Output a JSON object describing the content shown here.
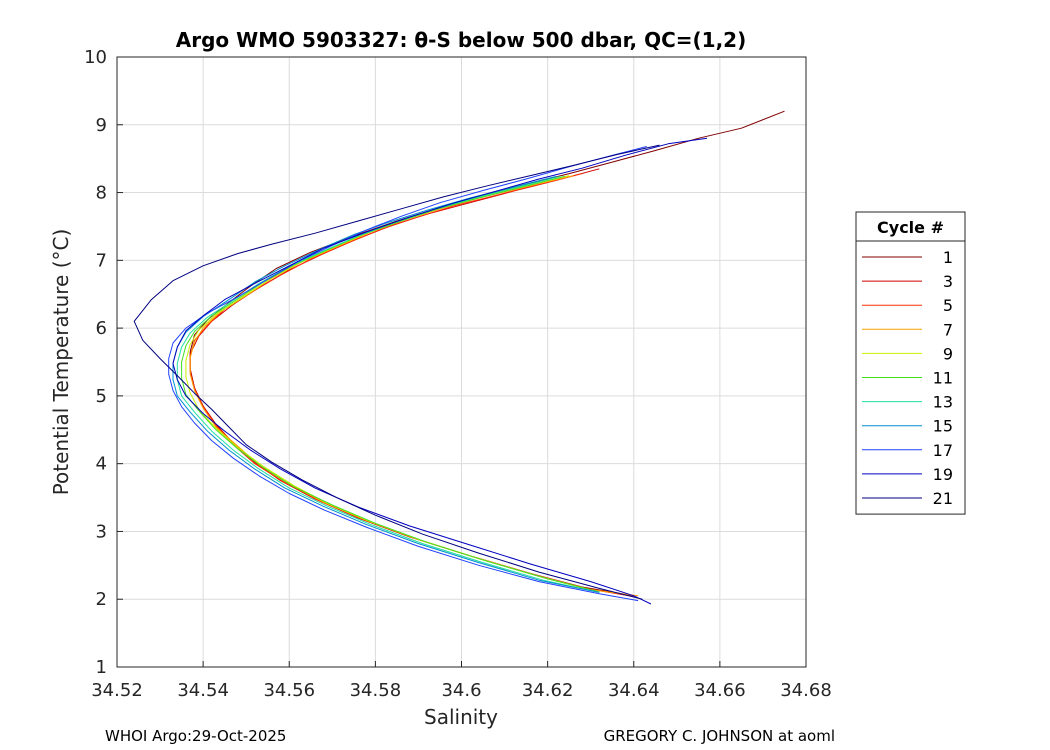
{
  "chart_data": {
    "type": "line",
    "title": "Argo WMO 5903327: θ-S below 500 dbar,  QC=(1,2)",
    "xlabel": "Salinity",
    "ylabel": "Potential Temperature (°C)",
    "xlim": [
      34.52,
      34.68
    ],
    "ylim": [
      1,
      10
    ],
    "x_ticks": [
      "34.52",
      "34.54",
      "34.56",
      "34.58",
      "34.6",
      "34.62",
      "34.64",
      "34.66",
      "34.68"
    ],
    "y_ticks": [
      "1",
      "2",
      "3",
      "4",
      "5",
      "6",
      "7",
      "8",
      "9",
      "10"
    ],
    "grid": true,
    "legend": {
      "title": "Cycle #",
      "placement": "right-outside"
    },
    "series": [
      {
        "name": "1",
        "color": "#800000",
        "x": [
          34.675,
          34.665,
          34.655,
          34.645,
          34.635,
          34.625,
          34.615,
          34.605,
          34.595,
          34.585,
          34.575,
          34.565,
          34.557,
          34.551,
          34.546,
          34.541,
          34.538,
          34.537,
          34.537,
          34.538,
          34.54,
          34.543,
          34.547,
          34.552,
          34.558,
          34.566,
          34.576,
          34.588,
          34.602,
          34.616,
          34.628,
          34.64
        ],
        "y": [
          9.2,
          8.95,
          8.8,
          8.62,
          8.45,
          8.28,
          8.12,
          7.96,
          7.78,
          7.58,
          7.36,
          7.12,
          6.88,
          6.62,
          6.38,
          6.12,
          5.9,
          5.65,
          5.4,
          5.12,
          4.85,
          4.58,
          4.3,
          4.02,
          3.75,
          3.48,
          3.2,
          2.92,
          2.64,
          2.38,
          2.18,
          2.05
        ]
      },
      {
        "name": "3",
        "color": "#d00000",
        "x": [
          34.632,
          34.622,
          34.612,
          34.602,
          34.592,
          34.584,
          34.576,
          34.568,
          34.56,
          34.553,
          34.547,
          34.542,
          34.539,
          34.537,
          34.537,
          34.538,
          34.54,
          34.543,
          34.547,
          34.552,
          34.558,
          34.566,
          34.576,
          34.588,
          34.602,
          34.616,
          34.628,
          34.639
        ],
        "y": [
          8.35,
          8.18,
          8.02,
          7.85,
          7.68,
          7.52,
          7.32,
          7.1,
          6.86,
          6.6,
          6.35,
          6.1,
          5.88,
          5.62,
          5.38,
          5.12,
          4.85,
          4.58,
          4.3,
          4.02,
          3.75,
          3.48,
          3.2,
          2.92,
          2.64,
          2.38,
          2.17,
          2.05
        ]
      },
      {
        "name": "5",
        "color": "#ff3000",
        "x": [
          34.628,
          34.618,
          34.608,
          34.598,
          34.589,
          34.581,
          34.573,
          34.565,
          34.558,
          34.551,
          34.545,
          34.541,
          34.538,
          34.537,
          34.537,
          34.538,
          34.54,
          34.543,
          34.547,
          34.552,
          34.559,
          34.567,
          34.577,
          34.589,
          34.603,
          34.617,
          34.629,
          34.64
        ],
        "y": [
          8.28,
          8.12,
          7.96,
          7.8,
          7.62,
          7.45,
          7.24,
          7.02,
          6.78,
          6.52,
          6.28,
          6.04,
          5.82,
          5.58,
          5.34,
          5.1,
          4.84,
          4.56,
          4.28,
          4.0,
          3.72,
          3.45,
          3.18,
          2.9,
          2.62,
          2.36,
          2.16,
          2.04
        ]
      },
      {
        "name": "7",
        "color": "#ffa000",
        "x": [
          34.626,
          34.616,
          34.606,
          34.596,
          34.587,
          34.579,
          34.571,
          34.563,
          34.556,
          34.55,
          34.544,
          34.54,
          34.538,
          34.537,
          34.537,
          34.538,
          34.54,
          34.543,
          34.548,
          34.553,
          34.56,
          34.568,
          34.578,
          34.59,
          34.604,
          34.618,
          34.63,
          34.641
        ],
        "y": [
          8.25,
          8.1,
          7.95,
          7.78,
          7.6,
          7.42,
          7.2,
          6.98,
          6.74,
          6.48,
          6.24,
          6.0,
          5.8,
          5.56,
          5.32,
          5.08,
          4.82,
          4.54,
          4.26,
          3.98,
          3.7,
          3.43,
          3.16,
          2.88,
          2.6,
          2.34,
          2.14,
          2.05
        ]
      },
      {
        "name": "9",
        "color": "#c8f000",
        "x": [
          34.625,
          34.615,
          34.605,
          34.595,
          34.586,
          34.578,
          34.57,
          34.562,
          34.555,
          34.549,
          34.543,
          34.539,
          34.537,
          34.536,
          34.536,
          34.537,
          34.539,
          34.543,
          34.548,
          34.554,
          34.561,
          34.569,
          34.579,
          34.591,
          34.605,
          34.619,
          34.631
        ],
        "y": [
          8.25,
          8.1,
          7.94,
          7.77,
          7.58,
          7.4,
          7.18,
          6.95,
          6.7,
          6.45,
          6.2,
          5.97,
          5.76,
          5.52,
          5.28,
          5.04,
          4.8,
          4.52,
          4.24,
          3.96,
          3.68,
          3.41,
          3.14,
          2.86,
          2.58,
          2.32,
          2.12
        ]
      },
      {
        "name": "11",
        "color": "#40e020",
        "x": [
          34.624,
          34.614,
          34.604,
          34.594,
          34.585,
          34.577,
          34.569,
          34.561,
          34.554,
          34.548,
          34.542,
          34.538,
          34.536,
          34.535,
          34.535,
          34.536,
          34.539,
          34.543,
          34.548,
          34.554,
          34.561,
          34.57,
          34.58,
          34.592,
          34.606,
          34.62,
          34.632
        ],
        "y": [
          8.24,
          8.08,
          7.92,
          7.75,
          7.56,
          7.38,
          7.16,
          6.93,
          6.68,
          6.43,
          6.18,
          5.95,
          5.74,
          5.5,
          5.26,
          5.02,
          4.78,
          4.5,
          4.22,
          3.94,
          3.66,
          3.39,
          3.12,
          2.84,
          2.56,
          2.3,
          2.11
        ]
      },
      {
        "name": "13",
        "color": "#20e0a0",
        "x": [
          34.623,
          34.613,
          34.603,
          34.593,
          34.584,
          34.576,
          34.568,
          34.56,
          34.553,
          34.547,
          34.541,
          34.537,
          34.535,
          34.534,
          34.534,
          34.535,
          34.538,
          34.542,
          34.547,
          34.553,
          34.56,
          34.569,
          34.579,
          34.591,
          34.605,
          34.619,
          34.632
        ],
        "y": [
          8.24,
          8.08,
          7.92,
          7.74,
          7.55,
          7.36,
          7.14,
          6.91,
          6.66,
          6.41,
          6.16,
          5.93,
          5.72,
          5.48,
          5.24,
          5.0,
          4.76,
          4.48,
          4.2,
          3.92,
          3.64,
          3.37,
          3.1,
          2.82,
          2.54,
          2.28,
          2.1
        ]
      },
      {
        "name": "15",
        "color": "#0090d0",
        "x": [
          34.622,
          34.612,
          34.602,
          34.592,
          34.583,
          34.575,
          34.567,
          34.559,
          34.552,
          34.546,
          34.54,
          34.536,
          34.534,
          34.533,
          34.533,
          34.534,
          34.537,
          34.541,
          34.546,
          34.552,
          34.559,
          34.568,
          34.578,
          34.59,
          34.604,
          34.618,
          34.632
        ],
        "y": [
          8.24,
          8.08,
          7.92,
          7.74,
          7.56,
          7.38,
          7.16,
          6.92,
          6.68,
          6.42,
          6.17,
          5.94,
          5.72,
          5.48,
          5.24,
          5.0,
          4.76,
          4.48,
          4.2,
          3.92,
          3.64,
          3.37,
          3.1,
          2.82,
          2.54,
          2.28,
          2.1
        ]
      },
      {
        "name": "17",
        "color": "#2040ff",
        "x": [
          34.643,
          34.635,
          34.625,
          34.615,
          34.605,
          34.595,
          34.586,
          34.578,
          34.57,
          34.562,
          34.555,
          34.548,
          34.541,
          34.536,
          34.533,
          34.532,
          34.532,
          34.533,
          34.535,
          34.538,
          34.542,
          34.547,
          34.553,
          34.56,
          34.568,
          34.578,
          34.59,
          34.604,
          34.618,
          34.632,
          34.641
        ],
        "y": [
          8.68,
          8.55,
          8.38,
          8.2,
          8.03,
          7.85,
          7.65,
          7.45,
          7.22,
          6.98,
          6.72,
          6.46,
          6.22,
          6.0,
          5.78,
          5.55,
          5.32,
          5.08,
          4.84,
          4.6,
          4.34,
          4.08,
          3.82,
          3.56,
          3.32,
          3.06,
          2.78,
          2.5,
          2.26,
          2.08,
          1.98
        ]
      },
      {
        "name": "19",
        "color": "#0000c0",
        "x": [
          34.657,
          34.648,
          34.638,
          34.628,
          34.618,
          34.608,
          34.598,
          34.588,
          34.578,
          34.568,
          34.56,
          34.552,
          34.545,
          34.54,
          34.536,
          34.534,
          34.533,
          34.534,
          34.536,
          34.54,
          34.545,
          34.551,
          34.558,
          34.566,
          34.576,
          34.588,
          34.602,
          34.616,
          34.63,
          34.64,
          34.644
        ],
        "y": [
          8.8,
          8.72,
          8.55,
          8.36,
          8.2,
          8.02,
          7.84,
          7.64,
          7.42,
          7.18,
          6.92,
          6.66,
          6.42,
          6.18,
          5.96,
          5.72,
          5.48,
          5.24,
          5.0,
          4.74,
          4.48,
          4.2,
          3.92,
          3.64,
          3.36,
          3.08,
          2.8,
          2.52,
          2.26,
          2.05,
          1.93
        ]
      },
      {
        "name": "21",
        "color": "#000080",
        "x": [
          34.646,
          34.636,
          34.626,
          34.616,
          34.606,
          34.596,
          34.586,
          34.576,
          34.566,
          34.556,
          34.548,
          34.54,
          34.533,
          34.528,
          34.524,
          34.526,
          34.53,
          34.534,
          34.538,
          34.542,
          34.546,
          34.55,
          34.556,
          34.563,
          34.571,
          34.58,
          34.591,
          34.604,
          34.618,
          34.632,
          34.642
        ],
        "y": [
          8.7,
          8.56,
          8.4,
          8.25,
          8.1,
          7.94,
          7.76,
          7.58,
          7.4,
          7.24,
          7.1,
          6.92,
          6.7,
          6.42,
          6.1,
          5.82,
          5.55,
          5.3,
          5.04,
          4.8,
          4.54,
          4.28,
          4.02,
          3.76,
          3.5,
          3.24,
          2.96,
          2.68,
          2.4,
          2.16,
          2.0
        ]
      }
    ]
  },
  "footer": {
    "left": "WHOI Argo:29-Oct-2025",
    "right": "GREGORY C. JOHNSON at aoml"
  }
}
